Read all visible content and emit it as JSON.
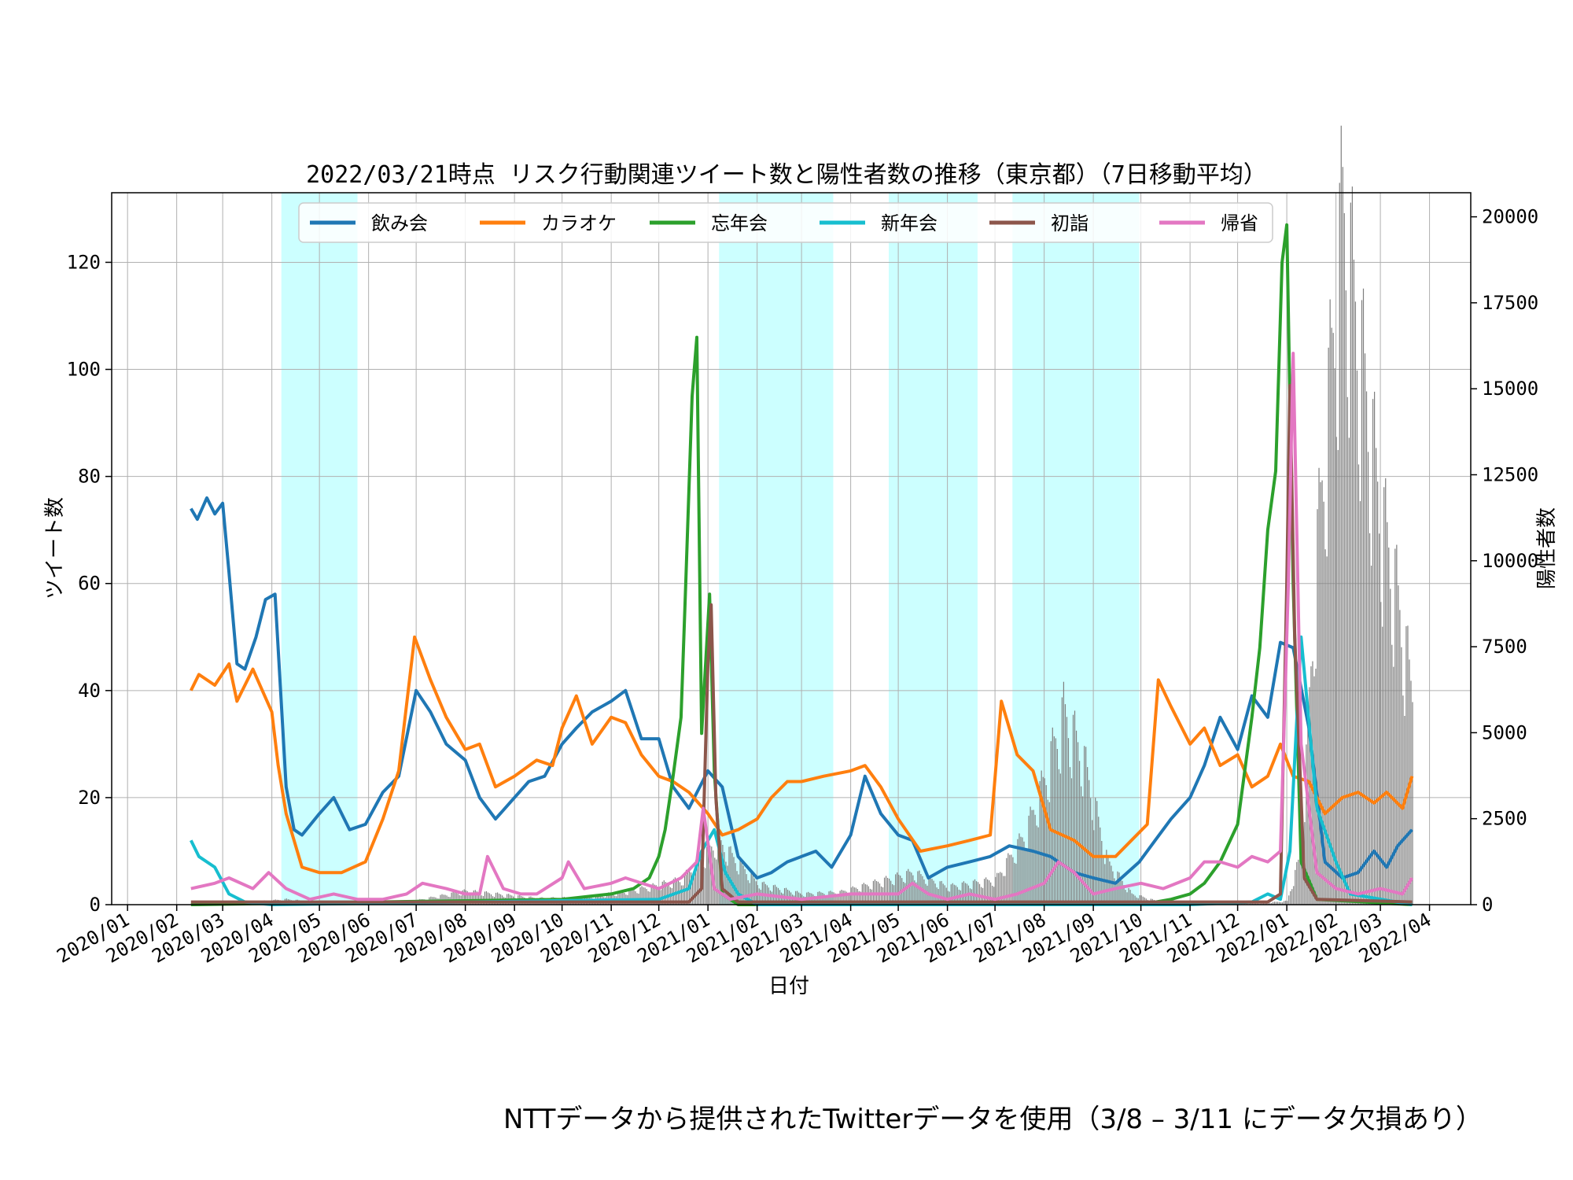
{
  "footnote": "NTTデータから提供されたTwitterデータを使用（3/8 – 3/11 にデータ欠損あり）",
  "chart_data": {
    "type": "line",
    "title": "2022/03/21時点 リスク行動関連ツイート数と陽性者数の推移（東京都）（7日移動平均）",
    "xlabel": "日付",
    "ylabel": "ツイート数",
    "y2label": "陽性者数",
    "ylim": [
      0,
      133
    ],
    "y2lim": [
      0,
      20700
    ],
    "yticks": [
      0,
      20,
      40,
      60,
      80,
      100,
      120
    ],
    "y2ticks": [
      0,
      2500,
      5000,
      7500,
      10000,
      12500,
      15000,
      17500,
      20000
    ],
    "xlim": [
      "2019-12-22",
      "2022-04-27"
    ],
    "xticks": [
      "2020/01",
      "2020/02",
      "2020/03",
      "2020/04",
      "2020/05",
      "2020/06",
      "2020/07",
      "2020/08",
      "2020/09",
      "2020/10",
      "2020/11",
      "2020/12",
      "2021/01",
      "2021/02",
      "2021/03",
      "2021/04",
      "2021/05",
      "2021/06",
      "2021/07",
      "2021/08",
      "2021/09",
      "2021/10",
      "2021/11",
      "2021/12",
      "2022/01",
      "2022/02",
      "2022/03",
      "2022/04"
    ],
    "grid": true,
    "legend_position": "top",
    "emergency_periods": [
      {
        "start": "2020-04-07",
        "end": "2020-05-25"
      },
      {
        "start": "2021-01-08",
        "end": "2021-03-21"
      },
      {
        "start": "2021-04-25",
        "end": "2021-06-20"
      },
      {
        "start": "2021-07-12",
        "end": "2021-09-30"
      }
    ],
    "shade_color": "#ccffff",
    "bars": {
      "name": "陽性者数",
      "color": "#7f7f7f",
      "x": [
        "2020-03-01",
        "2020-04-10",
        "2020-05-01",
        "2020-06-01",
        "2020-07-01",
        "2020-08-01",
        "2020-08-20",
        "2020-09-15",
        "2020-10-15",
        "2020-11-15",
        "2020-12-15",
        "2021-01-07",
        "2021-02-01",
        "2021-03-01",
        "2021-03-25",
        "2021-04-15",
        "2021-05-10",
        "2021-06-01",
        "2021-07-01",
        "2021-07-20",
        "2021-08-01",
        "2021-08-13",
        "2021-08-25",
        "2021-09-10",
        "2021-09-25",
        "2021-10-15",
        "2021-11-15",
        "2021-12-15",
        "2022-01-01",
        "2022-01-10",
        "2022-01-20",
        "2022-02-01",
        "2022-02-05",
        "2022-02-15",
        "2022-03-01",
        "2022-03-10",
        "2022-03-20"
      ],
      "values": [
        10,
        150,
        60,
        20,
        120,
        380,
        300,
        180,
        200,
        400,
        700,
        1800,
        600,
        300,
        350,
        600,
        900,
        500,
        700,
        2000,
        3500,
        5400,
        4200,
        1200,
        300,
        50,
        20,
        40,
        100,
        1500,
        10000,
        17000,
        19500,
        16000,
        11000,
        9000,
        6200
      ]
    },
    "series": [
      {
        "name": "飲み会",
        "color": "#1f77b4",
        "x": [
          "2020-02-10",
          "2020-02-14",
          "2020-02-20",
          "2020-02-25",
          "2020-03-01",
          "2020-03-05",
          "2020-03-10",
          "2020-03-15",
          "2020-03-22",
          "2020-03-28",
          "2020-04-03",
          "2020-04-10",
          "2020-04-15",
          "2020-04-20",
          "2020-05-01",
          "2020-05-10",
          "2020-05-20",
          "2020-05-30",
          "2020-06-10",
          "2020-06-20",
          "2020-07-01",
          "2020-07-10",
          "2020-07-20",
          "2020-08-01",
          "2020-08-10",
          "2020-08-20",
          "2020-09-01",
          "2020-09-10",
          "2020-09-20",
          "2020-10-01",
          "2020-10-10",
          "2020-10-20",
          "2020-11-01",
          "2020-11-10",
          "2020-11-20",
          "2020-12-01",
          "2020-12-10",
          "2020-12-20",
          "2021-01-01",
          "2021-01-10",
          "2021-01-20",
          "2021-02-01",
          "2021-02-10",
          "2021-02-20",
          "2021-03-01",
          "2021-03-10",
          "2021-03-20",
          "2021-04-01",
          "2021-04-10",
          "2021-04-20",
          "2021-05-01",
          "2021-05-10",
          "2021-05-20",
          "2021-06-01",
          "2021-06-15",
          "2021-06-28",
          "2021-07-10",
          "2021-07-25",
          "2021-08-05",
          "2021-08-20",
          "2021-09-01",
          "2021-09-15",
          "2021-09-30",
          "2021-10-10",
          "2021-10-20",
          "2021-11-01",
          "2021-11-10",
          "2021-11-20",
          "2021-12-01",
          "2021-12-10",
          "2021-12-20",
          "2021-12-28",
          "2022-01-05",
          "2022-01-15",
          "2022-01-25",
          "2022-02-05",
          "2022-02-15",
          "2022-02-25",
          "2022-03-05",
          "2022-03-12",
          "2022-03-21"
        ],
        "values": [
          74,
          72,
          76,
          73,
          75,
          62,
          45,
          44,
          50,
          57,
          58,
          22,
          14,
          13,
          17,
          20,
          14,
          15,
          21,
          24,
          40,
          36,
          30,
          27,
          20,
          16,
          20,
          23,
          24,
          30,
          33,
          36,
          38,
          40,
          31,
          31,
          22,
          18,
          25,
          22,
          9,
          5,
          6,
          8,
          9,
          10,
          7,
          13,
          24,
          17,
          13,
          12,
          5,
          7,
          8,
          9,
          11,
          10,
          9,
          6,
          5,
          4,
          8,
          12,
          16,
          20,
          26,
          35,
          29,
          39,
          35,
          49,
          48,
          33,
          8,
          5,
          6,
          10,
          7,
          11,
          14
        ]
      },
      {
        "name": "カラオケ",
        "color": "#ff7f0e",
        "x": [
          "2020-02-10",
          "2020-02-15",
          "2020-02-25",
          "2020-03-05",
          "2020-03-10",
          "2020-03-20",
          "2020-04-01",
          "2020-04-05",
          "2020-04-10",
          "2020-04-20",
          "2020-05-01",
          "2020-05-15",
          "2020-05-30",
          "2020-06-10",
          "2020-06-20",
          "2020-06-30",
          "2020-07-10",
          "2020-07-20",
          "2020-08-01",
          "2020-08-10",
          "2020-08-20",
          "2020-09-01",
          "2020-09-15",
          "2020-09-25",
          "2020-10-01",
          "2020-10-10",
          "2020-10-20",
          "2020-11-01",
          "2020-11-10",
          "2020-11-20",
          "2020-12-01",
          "2020-12-10",
          "2020-12-20",
          "2021-01-01",
          "2021-01-10",
          "2021-01-20",
          "2021-02-01",
          "2021-02-10",
          "2021-02-20",
          "2021-03-01",
          "2021-03-15",
          "2021-04-01",
          "2021-04-10",
          "2021-04-20",
          "2021-05-01",
          "2021-05-15",
          "2021-06-01",
          "2021-06-15",
          "2021-06-28",
          "2021-07-05",
          "2021-07-15",
          "2021-07-25",
          "2021-08-05",
          "2021-08-20",
          "2021-09-01",
          "2021-09-15",
          "2021-09-25",
          "2021-10-05",
          "2021-10-12",
          "2021-10-20",
          "2021-11-01",
          "2021-11-10",
          "2021-11-20",
          "2021-12-01",
          "2021-12-10",
          "2021-12-20",
          "2021-12-28",
          "2022-01-05",
          "2022-01-15",
          "2022-01-25",
          "2022-02-05",
          "2022-02-15",
          "2022-02-25",
          "2022-03-05",
          "2022-03-15",
          "2022-03-21"
        ],
        "values": [
          40,
          43,
          41,
          45,
          38,
          44,
          36,
          26,
          17,
          7,
          6,
          6,
          8,
          16,
          25,
          50,
          42,
          35,
          29,
          30,
          22,
          24,
          27,
          26,
          33,
          39,
          30,
          35,
          34,
          28,
          24,
          23,
          21,
          17,
          13,
          14,
          16,
          20,
          23,
          23,
          24,
          25,
          26,
          22,
          16,
          10,
          11,
          12,
          13,
          38,
          28,
          25,
          14,
          12,
          9,
          9,
          12,
          15,
          42,
          37,
          30,
          33,
          26,
          28,
          22,
          24,
          30,
          24,
          23,
          17,
          20,
          21,
          19,
          21,
          18,
          24
        ]
      },
      {
        "name": "忘年会",
        "color": "#2ca02c",
        "x": [
          "2020-02-10",
          "2020-10-01",
          "2020-11-01",
          "2020-11-15",
          "2020-11-25",
          "2020-12-01",
          "2020-12-05",
          "2020-12-10",
          "2020-12-15",
          "2020-12-18",
          "2020-12-22",
          "2020-12-25",
          "2020-12-28",
          "2021-01-02",
          "2021-01-05",
          "2021-01-10",
          "2021-01-20",
          "2021-10-01",
          "2021-10-20",
          "2021-11-01",
          "2021-11-10",
          "2021-11-20",
          "2021-12-01",
          "2021-12-10",
          "2021-12-15",
          "2021-12-20",
          "2021-12-25",
          "2021-12-29",
          "2022-01-01",
          "2022-01-05",
          "2022-01-10",
          "2022-01-20",
          "2022-03-21"
        ],
        "values": [
          0,
          1,
          2,
          3,
          5,
          9,
          14,
          24,
          35,
          60,
          95,
          106,
          32,
          58,
          25,
          2,
          0,
          0,
          1,
          2,
          4,
          8,
          15,
          35,
          48,
          70,
          81,
          120,
          127,
          60,
          8,
          1,
          0
        ]
      },
      {
        "name": "新年会",
        "color": "#17becf",
        "x": [
          "2020-02-10",
          "2020-02-15",
          "2020-02-25",
          "2020-03-05",
          "2020-03-15",
          "2020-04-01",
          "2020-12-01",
          "2020-12-20",
          "2020-12-28",
          "2021-01-05",
          "2021-01-12",
          "2021-01-20",
          "2021-02-01",
          "2021-11-01",
          "2021-12-10",
          "2021-12-20",
          "2021-12-28",
          "2022-01-03",
          "2022-01-10",
          "2022-01-20",
          "2022-02-01",
          "2022-02-10",
          "2022-03-21"
        ],
        "values": [
          12,
          9,
          7,
          2,
          0.5,
          0,
          1,
          3,
          10,
          14,
          6,
          2,
          0,
          0,
          0.5,
          2,
          1,
          10,
          50,
          18,
          8,
          2,
          0
        ]
      },
      {
        "name": "初詣",
        "color": "#8c564b",
        "x": [
          "2020-02-10",
          "2020-12-20",
          "2020-12-28",
          "2021-01-01",
          "2021-01-03",
          "2021-01-06",
          "2021-01-10",
          "2021-01-20",
          "2021-12-20",
          "2021-12-28",
          "2022-01-01",
          "2022-01-03",
          "2022-01-06",
          "2022-01-12",
          "2022-01-20",
          "2022-03-21"
        ],
        "values": [
          0.5,
          0.5,
          3,
          45,
          56,
          20,
          3,
          0.5,
          0.5,
          2,
          60,
          97,
          50,
          5,
          1,
          0.5
        ]
      },
      {
        "name": "帰省",
        "color": "#e377c2",
        "x": [
          "2020-02-10",
          "2020-02-25",
          "2020-03-05",
          "2020-03-20",
          "2020-03-30",
          "2020-04-10",
          "2020-04-25",
          "2020-05-10",
          "2020-05-25",
          "2020-06-10",
          "2020-06-25",
          "2020-07-05",
          "2020-07-20",
          "2020-08-01",
          "2020-08-10",
          "2020-08-15",
          "2020-08-25",
          "2020-09-05",
          "2020-09-15",
          "2020-10-01",
          "2020-10-05",
          "2020-10-15",
          "2020-11-01",
          "2020-11-10",
          "2020-12-01",
          "2020-12-15",
          "2020-12-25",
          "2020-12-29",
          "2021-01-05",
          "2021-01-15",
          "2021-02-01",
          "2021-03-01",
          "2021-04-01",
          "2021-05-01",
          "2021-05-10",
          "2021-05-20",
          "2021-06-01",
          "2021-06-15",
          "2021-07-01",
          "2021-07-15",
          "2021-08-01",
          "2021-08-10",
          "2021-08-20",
          "2021-09-01",
          "2021-09-15",
          "2021-10-01",
          "2021-10-15",
          "2021-11-01",
          "2021-11-10",
          "2021-11-20",
          "2021-12-01",
          "2021-12-10",
          "2021-12-20",
          "2021-12-28",
          "2022-01-02",
          "2022-01-05",
          "2022-01-10",
          "2022-01-20",
          "2022-02-01",
          "2022-02-15",
          "2022-03-01",
          "2022-03-15",
          "2022-03-21"
        ],
        "values": [
          3,
          4,
          5,
          3,
          6,
          3,
          1,
          2,
          1,
          1,
          2,
          4,
          3,
          2,
          2,
          9,
          3,
          2,
          2,
          5,
          8,
          3,
          4,
          5,
          3,
          5,
          8,
          18,
          3,
          1,
          2,
          1,
          2,
          2,
          4,
          2,
          1,
          2,
          1,
          2,
          4,
          8,
          6,
          2,
          3,
          4,
          3,
          5,
          8,
          8,
          7,
          9,
          8,
          10,
          60,
          103,
          30,
          6,
          3,
          2,
          3,
          2,
          5
        ]
      }
    ]
  }
}
